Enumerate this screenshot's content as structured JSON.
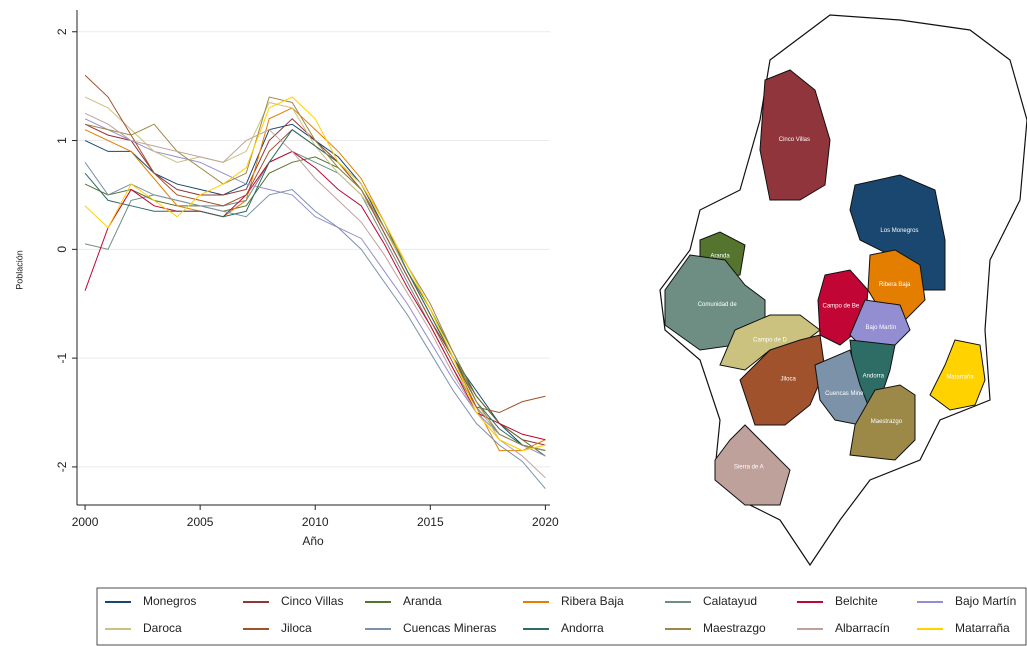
{
  "chart_data": {
    "type": "line",
    "ylabel": "Población",
    "xlabel": "Año",
    "x": [
      2000,
      2001,
      2002,
      2003,
      2004,
      2005,
      2006,
      2007,
      2008,
      2009,
      2010,
      2011,
      2012,
      2013,
      2014,
      2015,
      2016,
      2017,
      2018,
      2019,
      2020
    ],
    "xlim": [
      1999.65,
      2020.2
    ],
    "xticks": [
      2000,
      2005,
      2010,
      2015,
      2020
    ],
    "ylim": [
      -2.35,
      2.2
    ],
    "yticks": [
      -2,
      -1,
      0,
      1,
      2
    ],
    "grid": true,
    "series": [
      {
        "name": "Monegros",
        "color": "#1a476f",
        "values": [
          1.0,
          0.9,
          0.9,
          0.7,
          0.6,
          0.55,
          0.5,
          0.6,
          1.1,
          1.15,
          1.0,
          0.85,
          0.6,
          0.2,
          -0.2,
          -0.6,
          -1.0,
          -1.3,
          -1.6,
          -1.8,
          -1.85
        ]
      },
      {
        "name": "Cinco Villas",
        "color": "#90353b",
        "values": [
          1.15,
          1.05,
          1.0,
          0.7,
          0.55,
          0.5,
          0.5,
          0.55,
          1.0,
          1.2,
          1.0,
          0.8,
          0.55,
          0.15,
          -0.25,
          -0.65,
          -1.0,
          -1.35,
          -1.6,
          -1.75,
          -1.8
        ]
      },
      {
        "name": "Aranda",
        "color": "#55752f",
        "values": [
          0.6,
          0.5,
          0.55,
          0.45,
          0.4,
          0.4,
          0.35,
          0.4,
          0.7,
          0.8,
          0.85,
          0.75,
          0.55,
          0.2,
          -0.2,
          -0.55,
          -0.95,
          -1.35,
          -1.6,
          -1.75,
          -1.9
        ]
      },
      {
        "name": "Ribera Baja",
        "color": "#e37e00",
        "values": [
          1.1,
          1.0,
          0.9,
          0.65,
          0.4,
          0.35,
          0.3,
          0.45,
          1.2,
          1.3,
          1.1,
          0.9,
          0.65,
          0.25,
          -0.15,
          -0.55,
          -1.0,
          -1.45,
          -1.85,
          -1.85,
          -1.75
        ]
      },
      {
        "name": "Calatayud",
        "color": "#6e8e84",
        "values": [
          0.05,
          0.0,
          0.45,
          0.5,
          0.45,
          0.4,
          0.4,
          0.45,
          0.8,
          0.9,
          0.8,
          0.7,
          0.5,
          0.1,
          -0.3,
          -0.7,
          -1.1,
          -1.45,
          -1.7,
          -1.8,
          -1.85
        ]
      },
      {
        "name": "Belchite",
        "color": "#c10534",
        "values": [
          -0.38,
          0.2,
          0.55,
          0.4,
          0.35,
          0.35,
          0.3,
          0.5,
          0.8,
          0.9,
          0.75,
          0.55,
          0.4,
          0.05,
          -0.35,
          -0.7,
          -1.1,
          -1.5,
          -1.6,
          -1.7,
          -1.75
        ]
      },
      {
        "name": "Bajo Martín",
        "color": "#938dd2",
        "values": [
          1.2,
          1.1,
          1.0,
          0.9,
          0.85,
          0.8,
          0.7,
          0.6,
          0.55,
          0.5,
          0.3,
          0.2,
          0.1,
          -0.2,
          -0.5,
          -0.85,
          -1.2,
          -1.5,
          -1.7,
          -1.8,
          -1.9
        ]
      },
      {
        "name": "Daroca",
        "color": "#cac27e",
        "values": [
          1.4,
          1.3,
          1.1,
          0.9,
          0.8,
          0.85,
          0.8,
          0.9,
          1.35,
          1.3,
          0.95,
          0.7,
          0.5,
          0.2,
          -0.2,
          -0.6,
          -1.0,
          -1.4,
          -1.75,
          -1.85,
          -1.8
        ]
      },
      {
        "name": "Jiloca",
        "color": "#a0522d",
        "values": [
          1.6,
          1.4,
          1.05,
          0.7,
          0.5,
          0.45,
          0.4,
          0.5,
          0.9,
          1.1,
          0.95,
          0.8,
          0.55,
          0.15,
          -0.25,
          -0.65,
          -1.05,
          -1.45,
          -1.5,
          -1.4,
          -1.35
        ]
      },
      {
        "name": "Cuencas Mineras",
        "color": "#7b92a8",
        "values": [
          0.8,
          0.5,
          0.6,
          0.5,
          0.45,
          0.4,
          0.35,
          0.3,
          0.5,
          0.55,
          0.35,
          0.2,
          0.0,
          -0.3,
          -0.6,
          -0.95,
          -1.3,
          -1.6,
          -1.8,
          -1.95,
          -2.2
        ]
      },
      {
        "name": "Andorra",
        "color": "#2d6d66",
        "values": [
          0.7,
          0.45,
          0.4,
          0.35,
          0.35,
          0.35,
          0.3,
          0.35,
          0.8,
          1.1,
          0.95,
          0.8,
          0.6,
          0.25,
          -0.2,
          -0.6,
          -1.0,
          -1.4,
          -1.65,
          -1.8,
          -1.85
        ]
      },
      {
        "name": "Maestrazgo",
        "color": "#9c8847",
        "values": [
          1.15,
          1.1,
          1.05,
          1.15,
          0.9,
          0.75,
          0.6,
          0.7,
          1.4,
          1.35,
          1.0,
          0.75,
          0.55,
          0.2,
          -0.15,
          -0.5,
          -0.95,
          -1.4,
          -1.7,
          -1.8,
          -1.85
        ]
      },
      {
        "name": "Albarracín",
        "color": "#bfa19c",
        "values": [
          1.25,
          1.15,
          1.0,
          0.95,
          0.9,
          0.85,
          0.8,
          1.0,
          1.1,
          0.9,
          0.65,
          0.45,
          0.25,
          -0.05,
          -0.4,
          -0.75,
          -1.15,
          -1.5,
          -1.75,
          -1.9,
          -2.1
        ]
      },
      {
        "name": "Matarraña",
        "color": "#ffd200",
        "values": [
          0.4,
          0.2,
          0.6,
          0.45,
          0.3,
          0.5,
          0.6,
          0.75,
          1.3,
          1.4,
          1.2,
          0.8,
          0.6,
          0.25,
          -0.15,
          -0.55,
          -1.0,
          -1.5,
          -1.75,
          -1.85,
          -1.8
        ]
      }
    ]
  },
  "map": {
    "regions": [
      {
        "label": "Cinco Villas",
        "color": "#90353b"
      },
      {
        "label": "Los Monegros",
        "color": "#1a476f"
      },
      {
        "label": "Aranda",
        "color": "#55752f"
      },
      {
        "label": "Ribera Baja",
        "color": "#e37e00"
      },
      {
        "label": "Comunidad de",
        "color": "#6e8e84"
      },
      {
        "label": "Campo de Be",
        "color": "#c10534"
      },
      {
        "label": "Bajo Martín",
        "color": "#938dd2"
      },
      {
        "label": "Campo de D",
        "color": "#cac27e"
      },
      {
        "label": "Jiloca",
        "color": "#a0522d"
      },
      {
        "label": "Andorra",
        "color": "#2d6d66"
      },
      {
        "label": "Cuencas Mine",
        "color": "#7b92a8"
      },
      {
        "label": "Matarraña",
        "color": "#ffd200"
      },
      {
        "label": "Maestrazgo",
        "color": "#9c8847"
      },
      {
        "label": "Sierra de A",
        "color": "#bfa19c"
      }
    ]
  }
}
